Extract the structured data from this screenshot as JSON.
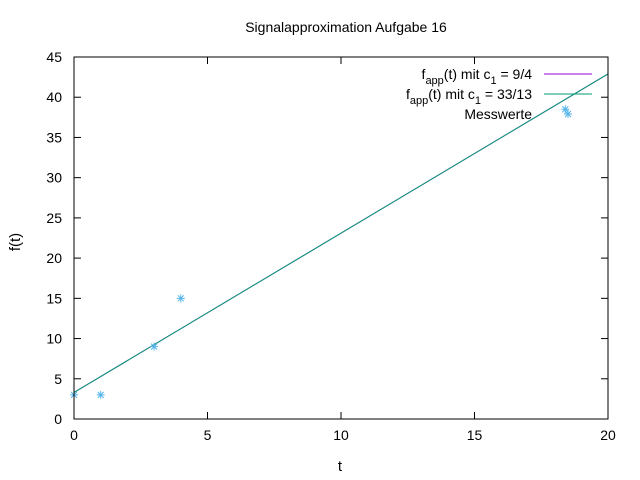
{
  "chart_data": {
    "type": "line",
    "title": "Signalapproximation Aufgabe 16",
    "xlabel": "t",
    "ylabel": "f(t)",
    "xlim": [
      0,
      20
    ],
    "ylim": [
      0,
      45
    ],
    "xticks": [
      0,
      5,
      10,
      15,
      20
    ],
    "yticks": [
      0,
      5,
      10,
      15,
      20,
      25,
      30,
      35,
      40,
      45
    ],
    "grid": false,
    "legend_position": "top-right",
    "series": [
      {
        "name": "f_app(t) mit c_1 = 9/4",
        "legend": {
          "pre": "f",
          "sub": "app",
          "mid": "(t) mit c",
          "sub2": "1",
          "post": " = 9/4"
        },
        "kind": "line",
        "color": "#9400d3",
        "x": [
          0,
          20
        ],
        "y": [
          3.3,
          42.9
        ]
      },
      {
        "name": "f_app(t) mit c_1 = 33/13",
        "legend": {
          "pre": "f",
          "sub": "app",
          "mid": "(t) mit c",
          "sub2": "1",
          "post": " = 33/13"
        },
        "kind": "line",
        "color": "#009e73",
        "x": [
          0,
          20
        ],
        "y": [
          3.3,
          42.9
        ]
      },
      {
        "name": "Messwerte",
        "legend": {
          "pre": "Messwerte"
        },
        "kind": "points",
        "marker": "asterisk",
        "color": "#56b4e9",
        "x": [
          0,
          1,
          3,
          4,
          18.4
        ],
        "y": [
          3,
          3,
          9,
          15,
          38.5
        ]
      }
    ]
  }
}
